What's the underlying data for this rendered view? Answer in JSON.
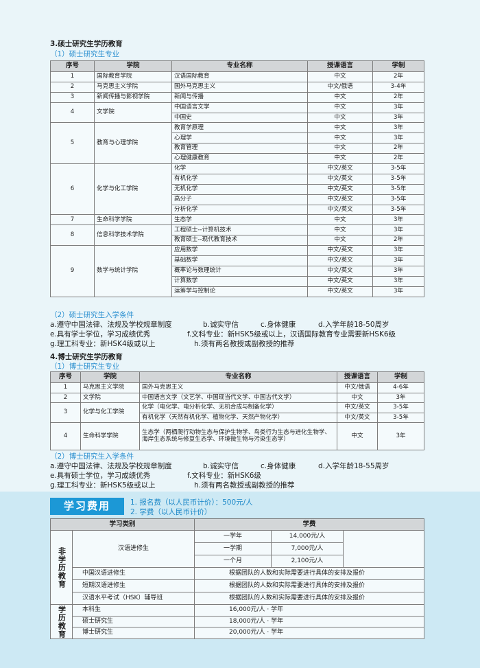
{
  "master": {
    "heading": "3.硕士研究生学历教育",
    "programs_title": "（1）硕士研究生专业",
    "table": {
      "headers": [
        "序号",
        "学院",
        "专业名称",
        "授课语言",
        "学制"
      ],
      "groups": [
        {
          "no": "1",
          "college": "国际教育学院",
          "majors": [
            [
              "汉语国际教育",
              "中文",
              "2年"
            ]
          ]
        },
        {
          "no": "2",
          "college": "马克思主义学院",
          "majors": [
            [
              "国外马克思主义",
              "中文/俄语",
              "3-4年"
            ]
          ]
        },
        {
          "no": "3",
          "college": "新闻传播与影视学院",
          "majors": [
            [
              "新闻与传播",
              "中文",
              "2年"
            ]
          ]
        },
        {
          "no": "4",
          "college": "文学院",
          "majors": [
            [
              "中国语言文学",
              "中文",
              "3年"
            ],
            [
              "中国史",
              "中文",
              "3年"
            ]
          ]
        },
        {
          "no": "5",
          "college": "教育与心理学院",
          "majors": [
            [
              "教育学原理",
              "中文",
              "3年"
            ],
            [
              "心理学",
              "中文",
              "3年"
            ],
            [
              "教育管理",
              "中文",
              "2年"
            ],
            [
              "心理健康教育",
              "中文",
              "2年"
            ]
          ]
        },
        {
          "no": "6",
          "college": "化学与化工学院",
          "majors": [
            [
              "化学",
              "中文/英文",
              "3-5年"
            ],
            [
              "有机化学",
              "中文/英文",
              "3-5年"
            ],
            [
              "无机化学",
              "中文/英文",
              "3-5年"
            ],
            [
              "高分子",
              "中文/英文",
              "3-5年"
            ],
            [
              "分析化学",
              "中文/英文",
              "3-5年"
            ]
          ]
        },
        {
          "no": "7",
          "college": "生命科学学院",
          "majors": [
            [
              "生态学",
              "中文",
              "3年"
            ]
          ]
        },
        {
          "no": "8",
          "college": "信息科学技术学院",
          "majors": [
            [
              "工程硕士--计算机技术",
              "中文",
              "3年"
            ],
            [
              "教育硕士--现代教育技术",
              "中文",
              "2年"
            ]
          ]
        },
        {
          "no": "9",
          "college": "数学与统计学院",
          "majors": [
            [
              "应用数学",
              "中文/英文",
              "3年"
            ],
            [
              "基础数学",
              "中文/英文",
              "3年"
            ],
            [
              "概率论与数理统计",
              "中文/英文",
              "3年"
            ],
            [
              "计算数学",
              "中文/英文",
              "3年"
            ],
            [
              "运筹学与控制论",
              "中文/英文",
              "3年"
            ]
          ]
        }
      ]
    },
    "requirements_title": "（2）硕士研究生入学条件",
    "requirements": [
      [
        "a.遵守中国法律、法规及学校规章制度",
        "b.诚实守信",
        "c.身体健康",
        "d.入学年龄18-50周岁"
      ],
      [
        "e.具有学士学位，学习成绩优秀",
        "f.文科专业：新HSK5级或以上，汉语国际教育专业需要新HSK6级"
      ],
      [
        "g.理工科专业：新HSK4级或以上",
        "h.须有两名教授或副教授的推荐"
      ]
    ]
  },
  "doctor": {
    "heading": "4.博士研究生学历教育",
    "programs_title": "（1）博士研究生专业",
    "table": {
      "headers": [
        "序号",
        "学院",
        "专业名称",
        "授课语言",
        "学制"
      ],
      "groups": [
        {
          "no": "1",
          "college": "马克思主义学院",
          "majors": [
            [
              "国外马克思主义",
              "中文/俄语",
              "4-6年"
            ]
          ]
        },
        {
          "no": "2",
          "college": "文学院",
          "majors": [
            [
              "中国语言文学（文艺学、中国现当代文学、中国古代文学）",
              "中文",
              "3年"
            ]
          ]
        },
        {
          "no": "3",
          "college": "化学与化工学院",
          "majors": [
            [
              "化学（电化学、电分析化学、无机合成与制备化学）",
              "中文/英文",
              "3-5年"
            ],
            [
              "有机化学（天然有机化学、植物化学、天然产物化学）",
              "中文/英文",
              "3-5年"
            ]
          ]
        },
        {
          "no": "4",
          "college": "生命科学学院",
          "majors": [
            [
              "生态学（两栖爬行动物生态与保护生物学、鸟类行为生态与进化生物学、海岸生态系统与修复生态学、环境微生物与污染生态学）",
              "中文",
              "3年"
            ]
          ]
        }
      ]
    },
    "requirements_title": "（2）博士研究生入学条件",
    "requirements": [
      [
        "a.遵守中国法律、法规及学校规章制度",
        "b.诚实守信",
        "c.身体健康",
        "d.入学年龄18-55周岁"
      ],
      [
        "e.具有硕士学位，学习成绩优秀",
        "f.文科专业：新HSK6级"
      ],
      [
        "g.理工科专业：新HSK5级或以上",
        "h.须有两名教授或副教授的推荐"
      ]
    ]
  },
  "fees": {
    "badge": "学习费用",
    "items": [
      "1. 报名费（以人民币计价）：500元/人",
      "2. 学费（以人民币计价）"
    ],
    "table": {
      "headers": [
        "学习类别",
        "学费"
      ],
      "non_degree": {
        "label": "非学历教育",
        "language_student": {
          "category": "汉语进修生",
          "periods": [
            [
              "一学年",
              "14,000元/人"
            ],
            [
              "一学期",
              "7,000元/人"
            ],
            [
              "一个月",
              "2,100元/人"
            ]
          ]
        },
        "rows": [
          [
            "中国汉语进修生",
            "根据团队的人数和实际需要进行具体的安排及报价"
          ],
          [
            "短期汉语进修生",
            "根据团队的人数和实际需要进行具体的安排及报价"
          ],
          [
            "汉语水平考试（HSK）辅导班",
            "根据团队的人数和实际需要进行具体的安排及报价"
          ]
        ]
      },
      "degree": {
        "label": "学历教育",
        "rows": [
          [
            "本科生",
            "16,000元/人 · 学年"
          ],
          [
            "硕士研究生",
            "18,000元/人 · 学年"
          ],
          [
            "博士研究生",
            "20,000元/人 · 学年"
          ]
        ]
      }
    }
  }
}
